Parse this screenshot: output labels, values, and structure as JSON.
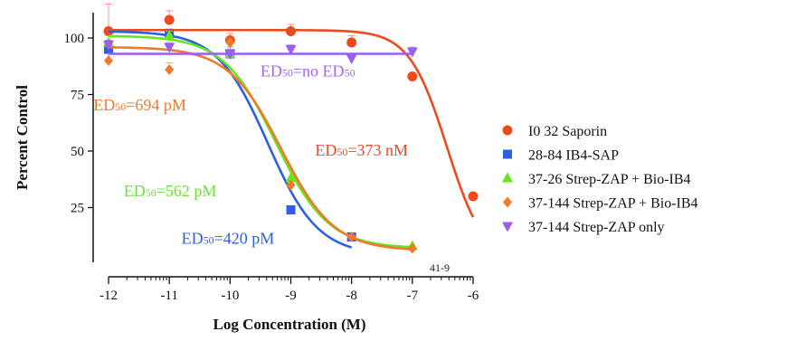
{
  "chart_data": {
    "type": "scatter",
    "xlabel": "Log Concentration (M)",
    "ylabel": "Percent Control",
    "xlim": [
      -12,
      -6
    ],
    "ylim": [
      0,
      110
    ],
    "x_ticks": [
      "-12",
      "-11",
      "-10",
      "-9",
      "-8",
      "-7",
      "-6"
    ],
    "y_ticks": [
      "25",
      "50",
      "75",
      "100"
    ],
    "code_label": "41-9",
    "legend": {
      "position": "right"
    },
    "series": [
      {
        "name": "I0 32 Saporin",
        "color": "#f04a1c",
        "marker": "circle",
        "x": [
          -12,
          -11,
          -10,
          -9,
          -8,
          -7,
          -6
        ],
        "y": [
          103,
          108,
          99,
          103,
          98,
          83,
          30
        ],
        "err": [
          12,
          4,
          3,
          3,
          3,
          0,
          0
        ],
        "fit": {
          "top": 103.5,
          "bottom": 0,
          "logEC50": -6.43,
          "hill": 1.4
        }
      },
      {
        "name": "28-84 IB4-SAP",
        "color": "#2d5fe6",
        "marker": "square",
        "x": [
          -12,
          -11,
          -10,
          -9,
          -8
        ],
        "y": [
          95,
          101,
          93,
          24,
          12
        ],
        "err": [
          4,
          3,
          3,
          0,
          0
        ],
        "fit": {
          "top": 103,
          "bottom": 4,
          "logEC50": -9.38,
          "hill": 1.05
        }
      },
      {
        "name": "37-26 Strep-ZAP + Bio-IB4",
        "color": "#66e61e",
        "marker": "triangle-up",
        "x": [
          -12,
          -11,
          -10,
          -9,
          -7
        ],
        "y": [
          98,
          101,
          93,
          38,
          8
        ],
        "err": [
          3,
          2,
          2,
          0,
          0
        ],
        "fit": {
          "top": 101,
          "bottom": 7,
          "logEC50": -9.25,
          "hill": 1.0
        }
      },
      {
        "name": "37-144 Strep-ZAP + Bio-IB4",
        "color": "#f07a2a",
        "marker": "diamond",
        "x": [
          -12,
          -11,
          -10,
          -9,
          -8,
          -7
        ],
        "y": [
          90,
          86,
          98,
          35,
          12,
          7
        ],
        "err": [
          3,
          3,
          2,
          0,
          0,
          0
        ],
        "fit": {
          "top": 96,
          "bottom": 6,
          "logEC50": -9.16,
          "hill": 1.0
        }
      },
      {
        "name": "37-144 Strep-ZAP only",
        "color": "#9b5ef0",
        "marker": "triangle-down",
        "x": [
          -12,
          -11,
          -10,
          -9,
          -8,
          -7
        ],
        "y": [
          97,
          96,
          93,
          95,
          91,
          94
        ],
        "err": [
          2,
          2,
          2,
          2,
          2,
          2
        ],
        "fit": {
          "flat": 93
        }
      }
    ],
    "annotations": [
      {
        "label": "ED50=no ED50",
        "parts": [
          "ED",
          "50",
          "=no ED",
          "50"
        ],
        "color": "#a466ec",
        "x": -9.5,
        "y": 83
      },
      {
        "label": "ED50=694 pM",
        "parts": [
          "ED",
          "50",
          "=694 pM"
        ],
        "color": "#f07a2a",
        "x": -12.25,
        "y": 68
      },
      {
        "label": "ED50=373 nM",
        "parts": [
          "ED",
          "50",
          "=373 nM"
        ],
        "color": "#e84a28",
        "x": -8.6,
        "y": 48
      },
      {
        "label": "ED50=562 pM",
        "parts": [
          "ED",
          "50",
          "=562 pM"
        ],
        "color": "#6ce03a",
        "x": -11.75,
        "y": 30
      },
      {
        "label": "ED50=420 pM",
        "parts": [
          "ED",
          "50",
          "=420 pM"
        ],
        "color": "#2c5fe0",
        "x": -10.8,
        "y": 9
      }
    ]
  }
}
